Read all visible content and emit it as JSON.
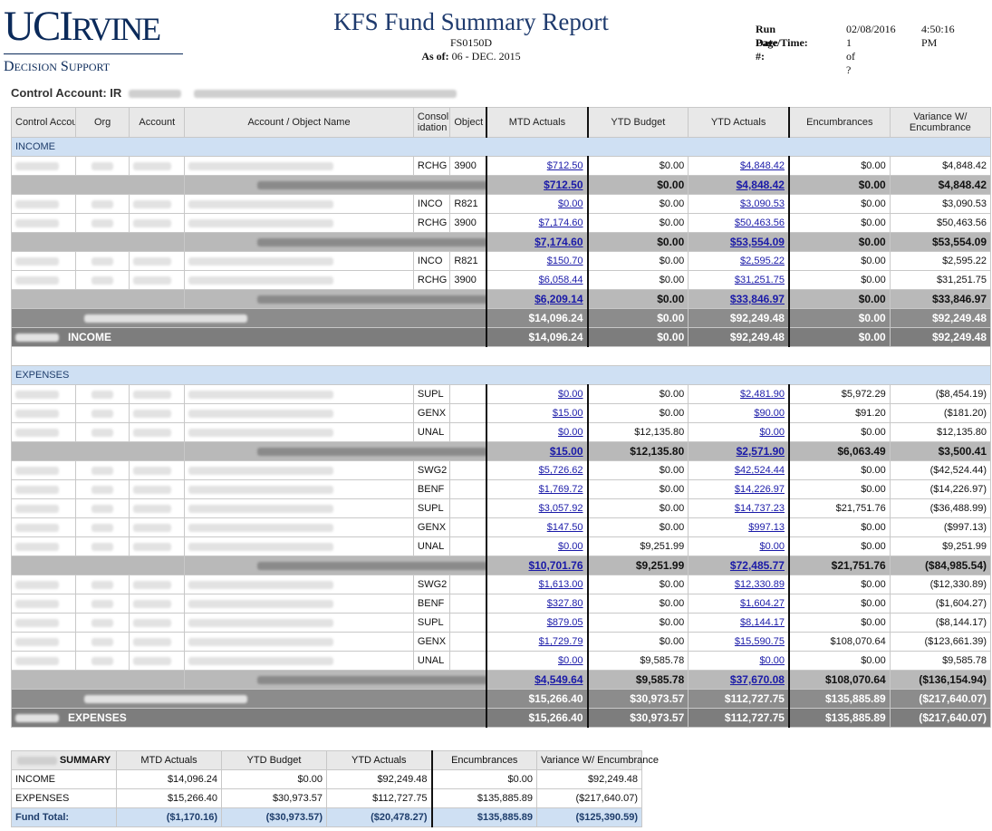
{
  "header": {
    "logo_uc": "UC",
    "logo_i": "I",
    "logo_rvine": "RVINE",
    "logo_decision": "D",
    "logo_ecision": "ECISION",
    "logo_support": "S",
    "logo_upport": "UPPORT",
    "title": "KFS Fund Summary Report",
    "report_code": "FS0150D",
    "as_of_label": "As of:",
    "as_of_value": "06 - DEC. 2015",
    "run_label": "Run Date/Time:",
    "run_date": "02/08/2016",
    "run_time": "4:50:16 PM",
    "page_label": "Page #:",
    "page_value": "1 of ?",
    "control_account_label": "Control Account: IR"
  },
  "columns": {
    "control_account": "Control Account",
    "org": "Org",
    "account": "Account",
    "account_object_name": "Account / Object Name",
    "consolidation": "Consol idation",
    "object": "Object",
    "mtd_actuals": "MTD Actuals",
    "ytd_budget": "YTD Budget",
    "ytd_actuals": "YTD Actuals",
    "encumbrances": "Encumbrances",
    "variance": "Variance W/ Encumbrance"
  },
  "income": {
    "label": "INCOME",
    "rows": [
      {
        "type": "detail",
        "cons": "RCHG",
        "obj": "3900",
        "mtd": "$712.50",
        "ytdb": "$0.00",
        "ytda": "$4,848.42",
        "enc": "$0.00",
        "var": "$4,848.42"
      },
      {
        "type": "subtotal",
        "suffix": "",
        "mtd": "$712.50",
        "ytdb": "$0.00",
        "ytda": "$4,848.42",
        "enc": "$0.00",
        "var": "$4,848.42"
      },
      {
        "type": "detail",
        "cons": "INCO",
        "obj": "R821",
        "mtd": "$0.00",
        "ytdb": "$0.00",
        "ytda": "$3,090.53",
        "enc": "$0.00",
        "var": "$3,090.53"
      },
      {
        "type": "detail",
        "cons": "RCHG",
        "obj": "3900",
        "mtd": "$7,174.60",
        "ytdb": "$0.00",
        "ytda": "$50,463.56",
        "enc": "$0.00",
        "var": "$50,463.56"
      },
      {
        "type": "subtotal",
        "suffix": "G",
        "mtd": "$7,174.60",
        "ytdb": "$0.00",
        "ytda": "$53,554.09",
        "enc": "$0.00",
        "var": "$53,554.09"
      },
      {
        "type": "detail",
        "cons": "INCO",
        "obj": "R821",
        "mtd": "$150.70",
        "ytdb": "$0.00",
        "ytda": "$2,595.22",
        "enc": "$0.00",
        "var": "$2,595.22"
      },
      {
        "type": "detail",
        "cons": "RCHG",
        "obj": "3900",
        "mtd": "$6,058.44",
        "ytdb": "$0.00",
        "ytda": "$31,251.75",
        "enc": "$0.00",
        "var": "$31,251.75"
      },
      {
        "type": "subtotal",
        "suffix": "",
        "mtd": "$6,209.14",
        "ytdb": "$0.00",
        "ytda": "$33,846.97",
        "enc": "$0.00",
        "var": "$33,846.97"
      }
    ],
    "org_total": {
      "mtd": "$14,096.24",
      "ytdb": "$0.00",
      "ytda": "$92,249.48",
      "enc": "$0.00",
      "var": "$92,249.48"
    },
    "grand_total": {
      "label": "INCOME",
      "mtd": "$14,096.24",
      "ytdb": "$0.00",
      "ytda": "$92,249.48",
      "enc": "$0.00",
      "var": "$92,249.48"
    }
  },
  "expenses": {
    "label": "EXPENSES",
    "rows": [
      {
        "type": "detail",
        "cons": "SUPL",
        "obj": "",
        "mtd": "$0.00",
        "ytdb": "$0.00",
        "ytda": "$2,481.90",
        "enc": "$5,972.29",
        "var": "($8,454.19)"
      },
      {
        "type": "detail",
        "cons": "GENX",
        "obj": "",
        "mtd": "$15.00",
        "ytdb": "$0.00",
        "ytda": "$90.00",
        "enc": "$91.20",
        "var": "($181.20)"
      },
      {
        "type": "detail",
        "cons": "UNAL",
        "obj": "",
        "mtd": "$0.00",
        "ytdb": "$12,135.80",
        "ytda": "$0.00",
        "enc": "$0.00",
        "var": "$12,135.80"
      },
      {
        "type": "subtotal",
        "suffix": "",
        "mtd": "$15.00",
        "ytdb": "$12,135.80",
        "ytda": "$2,571.90",
        "enc": "$6,063.49",
        "var": "$3,500.41"
      },
      {
        "type": "detail",
        "cons": "SWG2",
        "obj": "",
        "mtd": "$5,726.62",
        "ytdb": "$0.00",
        "ytda": "$42,524.44",
        "enc": "$0.00",
        "var": "($42,524.44)"
      },
      {
        "type": "detail",
        "cons": "BENF",
        "obj": "",
        "mtd": "$1,769.72",
        "ytdb": "$0.00",
        "ytda": "$14,226.97",
        "enc": "$0.00",
        "var": "($14,226.97)"
      },
      {
        "type": "detail",
        "cons": "SUPL",
        "obj": "",
        "mtd": "$3,057.92",
        "ytdb": "$0.00",
        "ytda": "$14,737.23",
        "enc": "$21,751.76",
        "var": "($36,488.99)"
      },
      {
        "type": "detail",
        "cons": "GENX",
        "obj": "",
        "mtd": "$147.50",
        "ytdb": "$0.00",
        "ytda": "$997.13",
        "enc": "$0.00",
        "var": "($997.13)"
      },
      {
        "type": "detail",
        "cons": "UNAL",
        "obj": "",
        "mtd": "$0.00",
        "ytdb": "$9,251.99",
        "ytda": "$0.00",
        "enc": "$0.00",
        "var": "$9,251.99"
      },
      {
        "type": "subtotal",
        "suffix": "G",
        "mtd": "$10,701.76",
        "ytdb": "$9,251.99",
        "ytda": "$72,485.77",
        "enc": "$21,751.76",
        "var": "($84,985.54)"
      },
      {
        "type": "detail",
        "cons": "SWG2",
        "obj": "",
        "mtd": "$1,613.00",
        "ytdb": "$0.00",
        "ytda": "$12,330.89",
        "enc": "$0.00",
        "var": "($12,330.89)"
      },
      {
        "type": "detail",
        "cons": "BENF",
        "obj": "",
        "mtd": "$327.80",
        "ytdb": "$0.00",
        "ytda": "$1,604.27",
        "enc": "$0.00",
        "var": "($1,604.27)"
      },
      {
        "type": "detail",
        "cons": "SUPL",
        "obj": "",
        "mtd": "$879.05",
        "ytdb": "$0.00",
        "ytda": "$8,144.17",
        "enc": "$0.00",
        "var": "($8,144.17)"
      },
      {
        "type": "detail",
        "cons": "GENX",
        "obj": "",
        "mtd": "$1,729.79",
        "ytdb": "$0.00",
        "ytda": "$15,590.75",
        "enc": "$108,070.64",
        "var": "($123,661.39)"
      },
      {
        "type": "detail",
        "cons": "UNAL",
        "obj": "",
        "mtd": "$0.00",
        "ytdb": "$9,585.78",
        "ytda": "$0.00",
        "enc": "$0.00",
        "var": "$9,585.78"
      },
      {
        "type": "subtotal",
        "suffix": "",
        "mtd": "$4,549.64",
        "ytdb": "$9,585.78",
        "ytda": "$37,670.08",
        "enc": "$108,070.64",
        "var": "($136,154.94)"
      }
    ],
    "org_total": {
      "mtd": "$15,266.40",
      "ytdb": "$30,973.57",
      "ytda": "$112,727.75",
      "enc": "$135,885.89",
      "var": "($217,640.07)"
    },
    "grand_total": {
      "label": "EXPENSES",
      "mtd": "$15,266.40",
      "ytdb": "$30,973.57",
      "ytda": "$112,727.75",
      "enc": "$135,885.89",
      "var": "($217,640.07)"
    }
  },
  "summary": {
    "title": "SUMMARY",
    "headers": [
      "MTD Actuals",
      "YTD Budget",
      "YTD Actuals",
      "Encumbrances",
      "Variance W/ Encumbrance"
    ],
    "rows": [
      {
        "label": "INCOME",
        "vals": [
          "$14,096.24",
          "$0.00",
          "$92,249.48",
          "$0.00",
          "$92,249.48"
        ]
      },
      {
        "label": "EXPENSES",
        "vals": [
          "$15,266.40",
          "$30,973.57",
          "$112,727.75",
          "$135,885.89",
          "($217,640.07)"
        ]
      }
    ],
    "fund_total": {
      "label": "Fund Total:",
      "vals": [
        "($1,170.16)",
        "($30,973.57)",
        "($20,478.27)",
        "$135,885.89",
        "($125,390.59)"
      ]
    }
  }
}
